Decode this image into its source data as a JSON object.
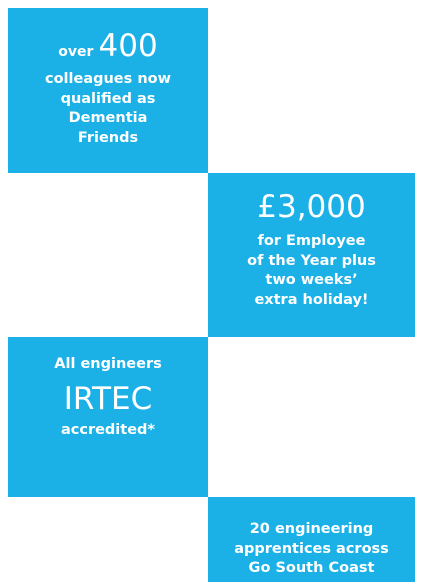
{
  "panels": [
    {
      "prefix": "over",
      "figure": "400",
      "lines": [
        "colleagues now",
        "qualified as",
        "Dementia",
        "Friends"
      ]
    },
    {
      "figure": "£3,000",
      "lines": [
        "for Employee",
        "of the Year plus",
        "two weeks’",
        "extra holiday!"
      ]
    },
    {
      "lead": "All engineers",
      "figure": "IRTEC",
      "lines": [
        "accredited*"
      ]
    },
    {
      "lines": [
        "20 engineering",
        "apprentices across",
        "Go South Coast"
      ]
    }
  ]
}
